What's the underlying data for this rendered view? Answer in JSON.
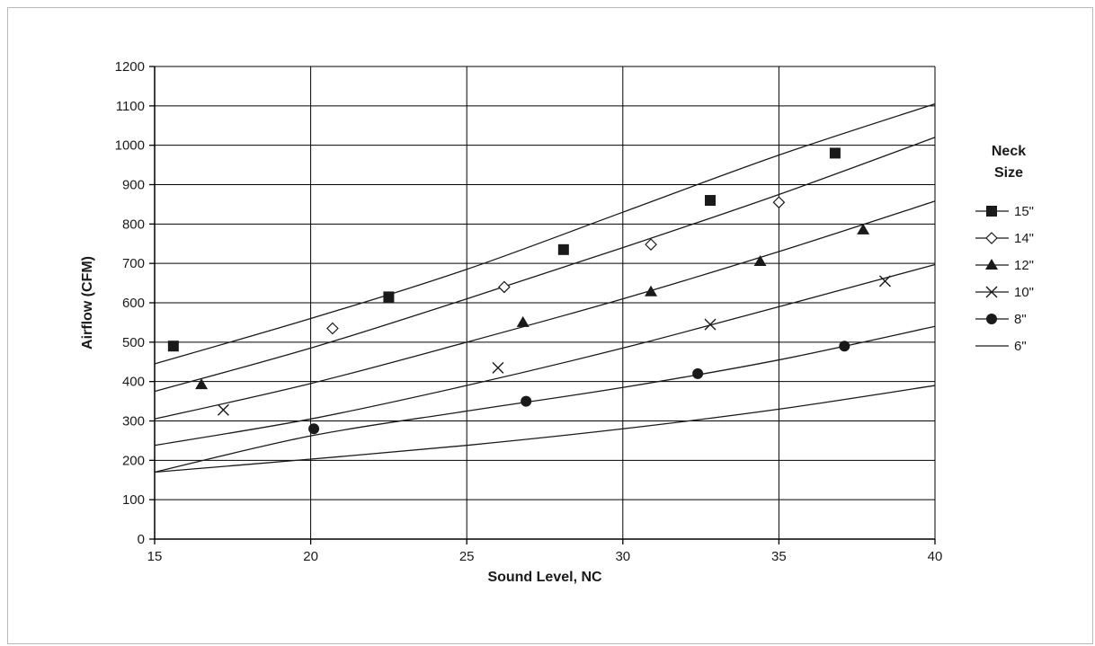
{
  "chart_data": {
    "type": "line",
    "title": "",
    "xlabel": "Sound Level, NC",
    "ylabel": "Airflow (CFM)",
    "xlim": [
      15,
      40
    ],
    "ylim": [
      0,
      1200
    ],
    "xticks": [
      15,
      20,
      25,
      30,
      35,
      40
    ],
    "yticks": [
      0,
      100,
      200,
      300,
      400,
      500,
      600,
      700,
      800,
      900,
      1000,
      1100,
      1200
    ],
    "grid": true,
    "legend": {
      "title_lines": [
        "Neck",
        "Size"
      ],
      "placement": "right"
    },
    "series": [
      {
        "name": "15\"",
        "marker": "square",
        "line": [
          [
            15,
            445
          ],
          [
            20,
            560
          ],
          [
            25,
            685
          ],
          [
            30,
            830
          ],
          [
            35,
            975
          ],
          [
            40,
            1105
          ]
        ],
        "points": [
          [
            15.6,
            490
          ],
          [
            22.5,
            615
          ],
          [
            28.1,
            735
          ],
          [
            32.8,
            860
          ],
          [
            36.8,
            980
          ]
        ]
      },
      {
        "name": "14\"",
        "marker": "diamond-open",
        "line": [
          [
            15,
            375
          ],
          [
            20,
            485
          ],
          [
            25,
            610
          ],
          [
            30,
            740
          ],
          [
            35,
            875
          ],
          [
            40,
            1020
          ]
        ],
        "points": [
          [
            20.7,
            535
          ],
          [
            26.2,
            640
          ],
          [
            30.9,
            748
          ],
          [
            35,
            855
          ]
        ]
      },
      {
        "name": "12\"",
        "marker": "triangle",
        "line": [
          [
            15,
            305
          ],
          [
            20,
            395
          ],
          [
            25,
            500
          ],
          [
            30,
            610
          ],
          [
            35,
            730
          ],
          [
            40,
            858
          ]
        ],
        "points": [
          [
            16.5,
            392
          ],
          [
            26.8,
            550
          ],
          [
            30.9,
            628
          ],
          [
            34.4,
            705
          ],
          [
            37.7,
            785
          ]
        ]
      },
      {
        "name": "10\"",
        "marker": "x",
        "line": [
          [
            15,
            238
          ],
          [
            20,
            305
          ],
          [
            25,
            390
          ],
          [
            30,
            485
          ],
          [
            35,
            590
          ],
          [
            40,
            697
          ]
        ],
        "points": [
          [
            17.2,
            328
          ],
          [
            26,
            435
          ],
          [
            32.8,
            545
          ],
          [
            38.4,
            655
          ]
        ]
      },
      {
        "name": "8\"",
        "marker": "circle",
        "line": [
          [
            15,
            170
          ],
          [
            20,
            262
          ],
          [
            25,
            325
          ],
          [
            30,
            385
          ],
          [
            35,
            455
          ],
          [
            40,
            540
          ]
        ],
        "points": [
          [
            20.1,
            280
          ],
          [
            26.9,
            350
          ],
          [
            32.4,
            420
          ],
          [
            37.1,
            490
          ]
        ]
      },
      {
        "name": "6\"",
        "marker": "none",
        "line": [
          [
            15,
            170
          ],
          [
            20,
            203
          ],
          [
            25,
            238
          ],
          [
            30,
            280
          ],
          [
            35,
            330
          ],
          [
            40,
            390
          ]
        ],
        "points": []
      }
    ]
  }
}
